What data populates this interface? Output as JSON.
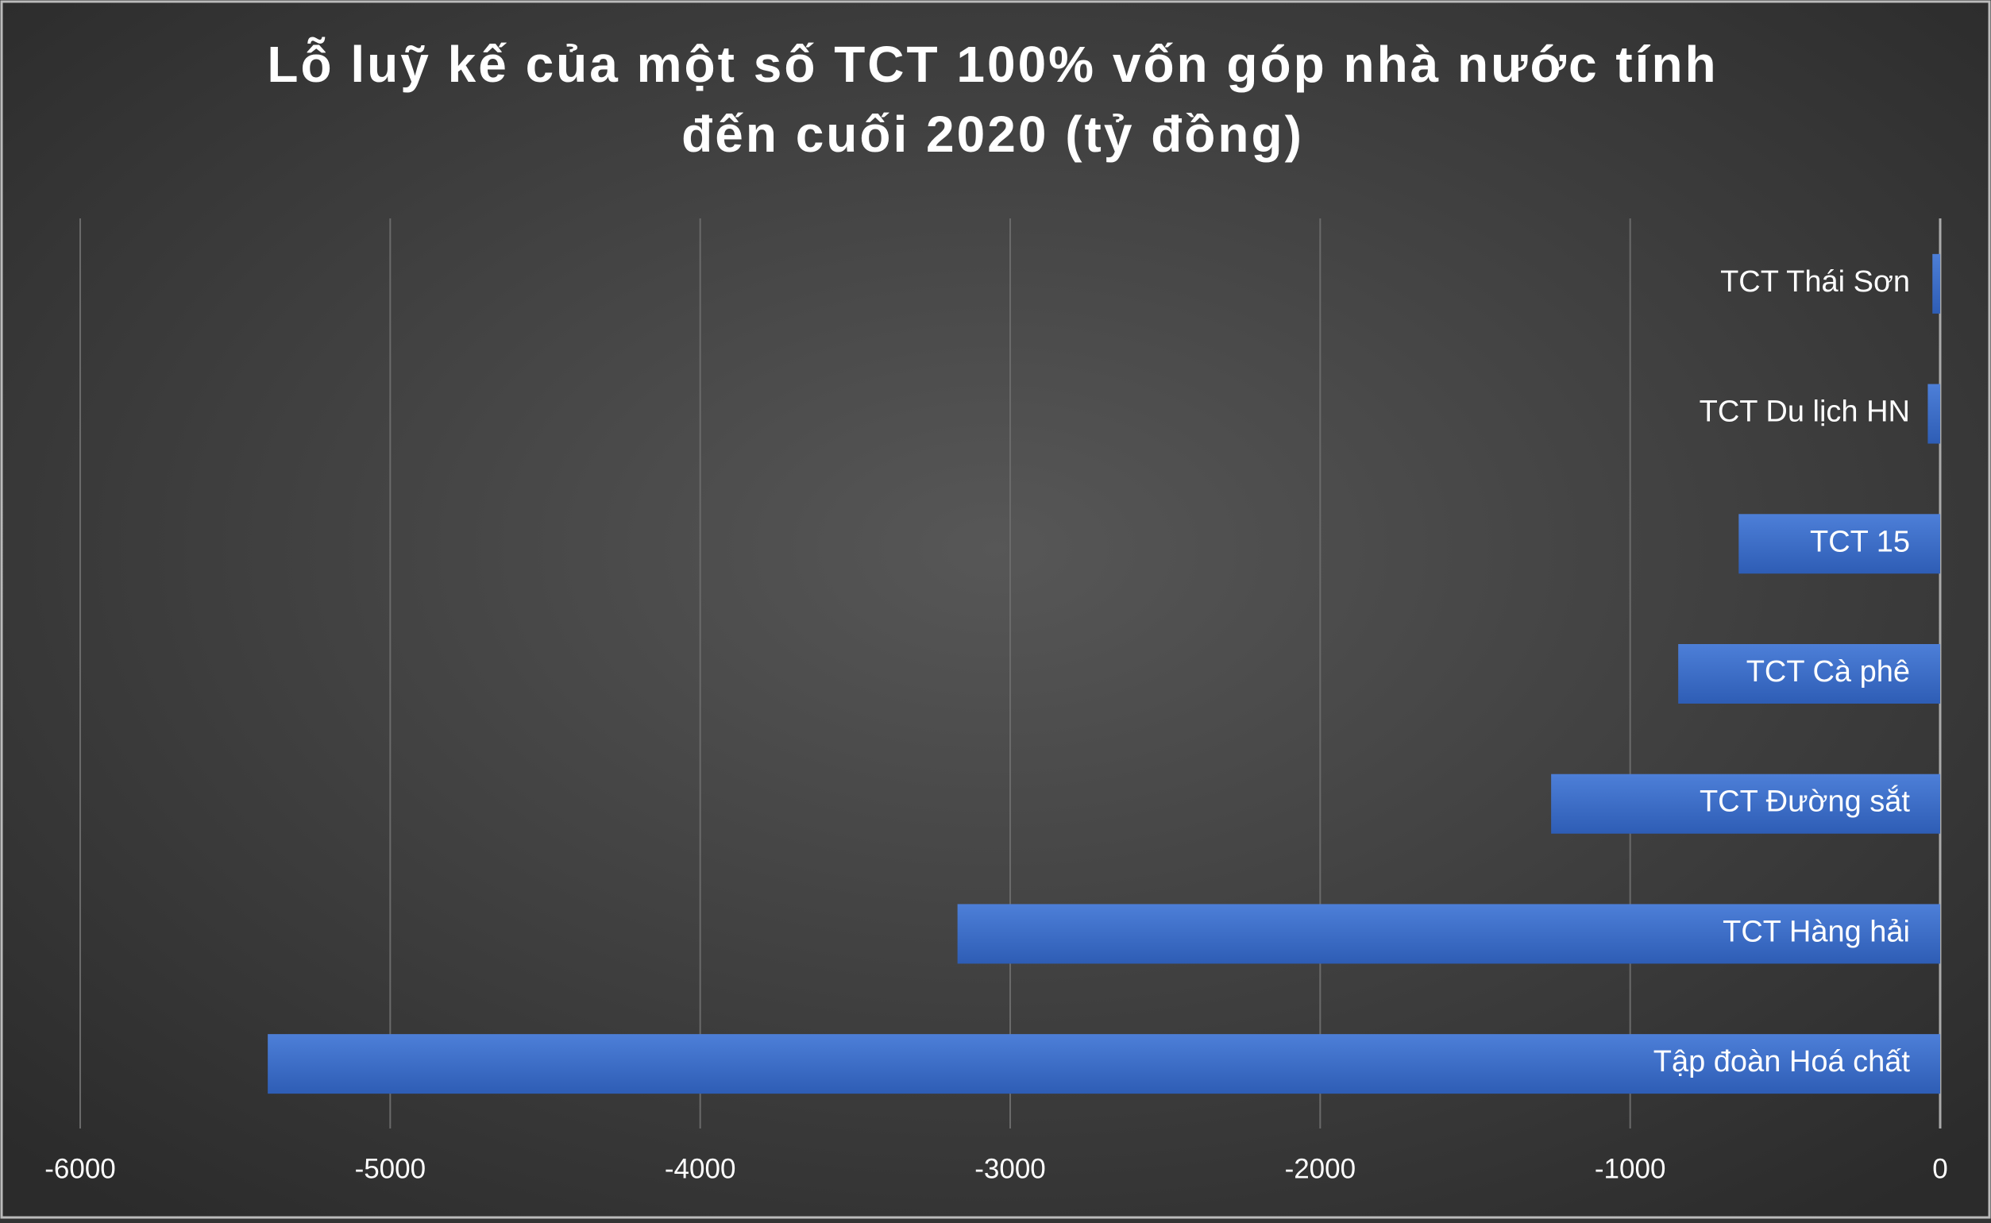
{
  "chart_data": {
    "type": "bar",
    "orientation": "horizontal",
    "title": [
      "Lỗ luỹ kế của một số TCT 100% vốn góp nhà nước tính",
      "đến cuối 2020 (tỷ đồng)"
    ],
    "categories": [
      "TCT Thái Sơn",
      "TCT Du lịch HN",
      "TCT 15",
      "TCT Cà phê",
      "TCT Đường sắt",
      "TCT Hàng hải",
      "Tập đoàn Hoá chất"
    ],
    "values": [
      -25,
      -40,
      -650,
      -845,
      -1255,
      -3170,
      -5395
    ],
    "color": "#3f6fcc",
    "xlim": [
      -6000,
      0
    ],
    "xticks": [
      -6000,
      -5000,
      -4000,
      -3000,
      -2000,
      -1000,
      0
    ],
    "grid": true
  }
}
